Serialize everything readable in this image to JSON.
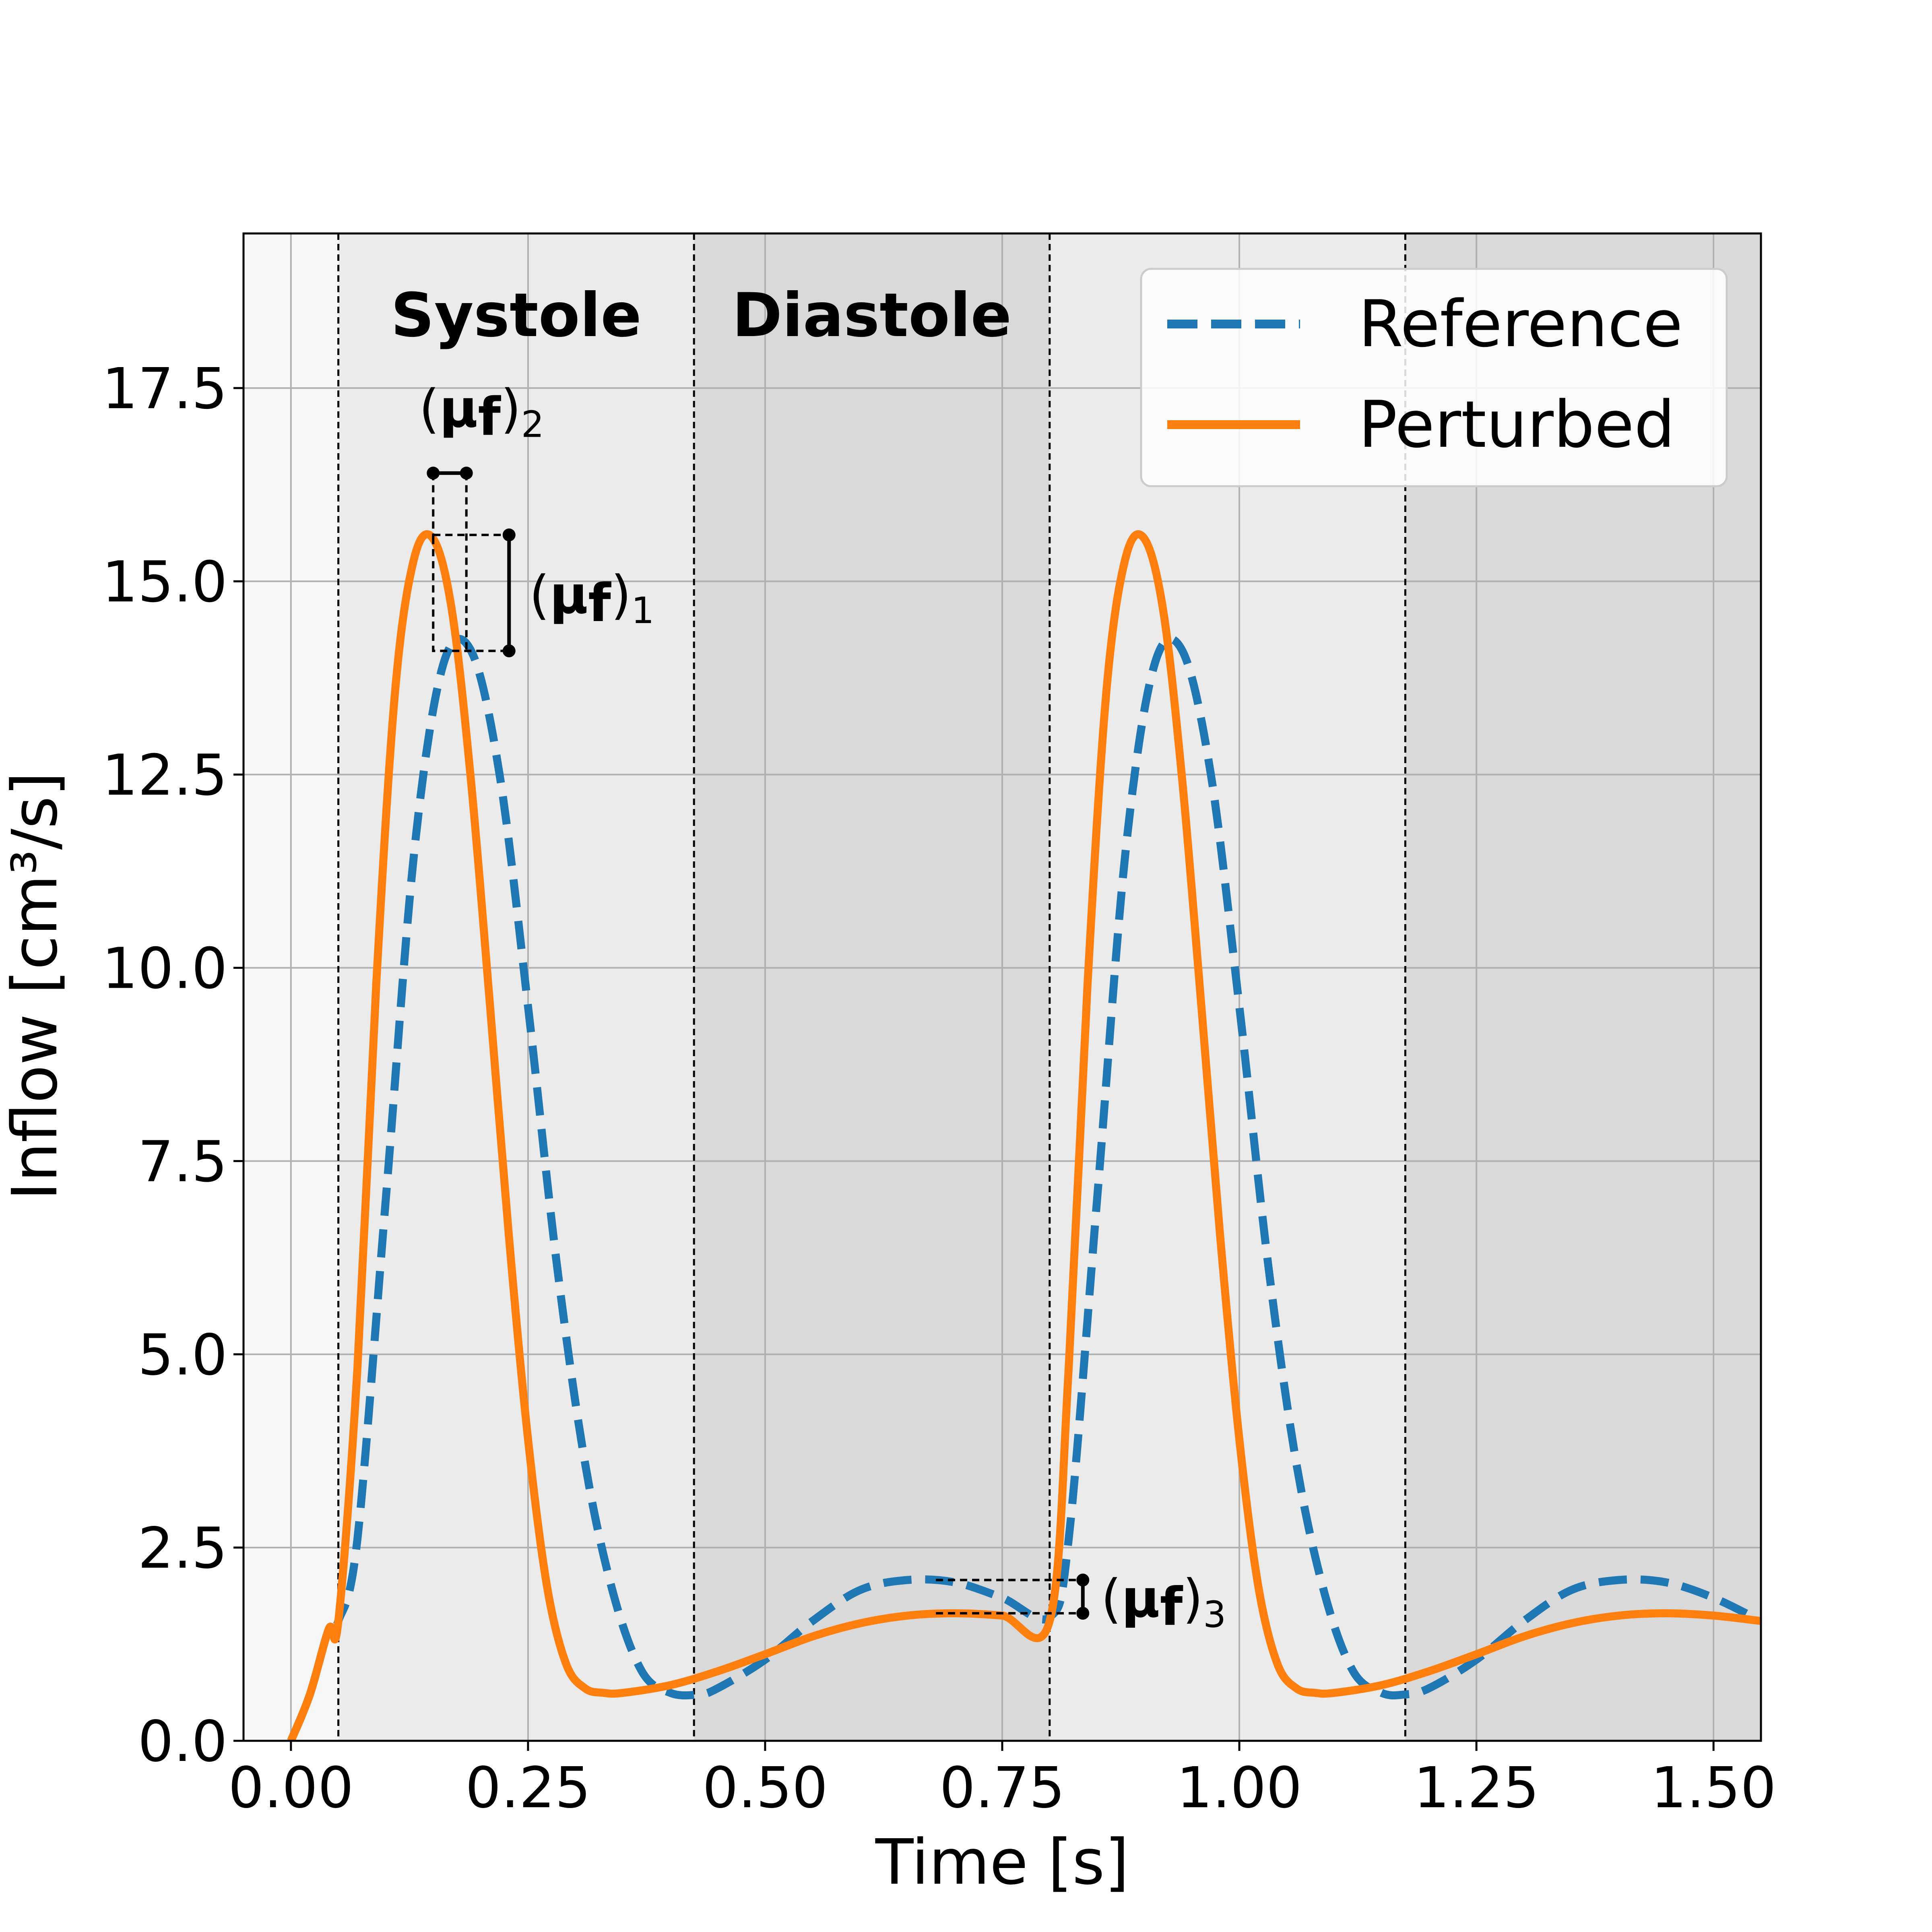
{
  "chart_data": {
    "type": "line",
    "xlabel": "Time [s]",
    "ylabel": "Inflow [cm³/s]",
    "xlim": [
      -0.05,
      1.55
    ],
    "ylim": [
      0,
      19.5
    ],
    "xticks": [
      "0.00",
      "0.25",
      "0.50",
      "0.75",
      "1.00",
      "1.25",
      "1.50"
    ],
    "yticks": [
      "0.0",
      "2.5",
      "5.0",
      "7.5",
      "10.0",
      "12.5",
      "15.0",
      "17.5"
    ],
    "grid": true,
    "legend_position": "top-right",
    "phases": [
      {
        "label": "Systole",
        "x0": 0.05,
        "x1": 0.425
      },
      {
        "label": "Diastole",
        "x0": 0.425,
        "x1": 0.8
      }
    ],
    "phase_boundaries": [
      0.05,
      0.425,
      0.8,
      1.175
    ],
    "series": [
      {
        "name": "Reference",
        "style": "dashed",
        "color": "#1f77b4",
        "x": [
          0.0,
          0.02,
          0.04,
          0.05,
          0.07,
          0.1,
          0.13,
          0.16,
          0.19,
          0.22,
          0.25,
          0.28,
          0.31,
          0.34,
          0.37,
          0.4,
          0.43,
          0.45,
          0.5,
          0.55,
          0.6,
          0.65,
          0.7,
          0.75,
          0.8,
          0.82,
          0.85,
          0.88,
          0.91,
          0.94,
          0.97,
          1.0,
          1.03,
          1.06,
          1.09,
          1.12,
          1.15,
          1.175,
          1.2,
          1.25,
          1.3,
          1.35,
          1.4,
          1.45,
          1.5,
          1.55
        ],
        "y": [
          0.0,
          0.6,
          1.45,
          1.55,
          2.6,
          7.0,
          11.5,
          13.9,
          14.1,
          12.5,
          9.5,
          6.2,
          3.6,
          1.9,
          0.9,
          0.62,
          0.6,
          0.68,
          1.05,
          1.55,
          1.95,
          2.08,
          2.05,
          1.85,
          1.6,
          2.6,
          7.0,
          11.5,
          13.9,
          14.1,
          12.5,
          9.5,
          6.2,
          3.6,
          1.9,
          0.9,
          0.62,
          0.6,
          0.68,
          1.05,
          1.55,
          1.95,
          2.08,
          2.05,
          1.85,
          1.55
        ]
      },
      {
        "name": "Perturbed",
        "style": "solid",
        "color": "#ff7f0e",
        "x": [
          0.0,
          0.02,
          0.04,
          0.05,
          0.07,
          0.09,
          0.11,
          0.13,
          0.15,
          0.17,
          0.19,
          0.21,
          0.23,
          0.25,
          0.27,
          0.29,
          0.31,
          0.33,
          0.35,
          0.4,
          0.45,
          0.5,
          0.55,
          0.6,
          0.65,
          0.7,
          0.75,
          0.8,
          0.82,
          0.84,
          0.86,
          0.88,
          0.9,
          0.92,
          0.94,
          0.96,
          0.98,
          1.0,
          1.02,
          1.04,
          1.06,
          1.08,
          1.1,
          1.15,
          1.2,
          1.25,
          1.3,
          1.35,
          1.4,
          1.45,
          1.5,
          1.55
        ],
        "y": [
          0.0,
          0.6,
          1.45,
          1.55,
          4.8,
          9.8,
          13.6,
          15.3,
          15.55,
          14.6,
          12.4,
          9.5,
          6.5,
          3.9,
          2.0,
          1.0,
          0.68,
          0.62,
          0.62,
          0.72,
          0.9,
          1.12,
          1.35,
          1.52,
          1.62,
          1.65,
          1.62,
          1.55,
          4.8,
          9.8,
          13.6,
          15.3,
          15.55,
          14.6,
          12.4,
          9.5,
          6.5,
          3.9,
          2.0,
          1.0,
          0.68,
          0.62,
          0.62,
          0.72,
          0.9,
          1.12,
          1.35,
          1.52,
          1.62,
          1.65,
          1.62,
          1.55
        ]
      }
    ],
    "annotations": [
      {
        "text": "(μf)1",
        "kind": "vertical",
        "x": 0.23,
        "y0": 14.1,
        "y1": 15.6
      },
      {
        "text": "(μf)2",
        "kind": "horizontal",
        "y": 16.4,
        "x0": 0.15,
        "x1": 0.185
      },
      {
        "text": "(μf)3",
        "kind": "vertical",
        "x": 0.835,
        "y0": 1.65,
        "y1": 2.08
      }
    ]
  }
}
